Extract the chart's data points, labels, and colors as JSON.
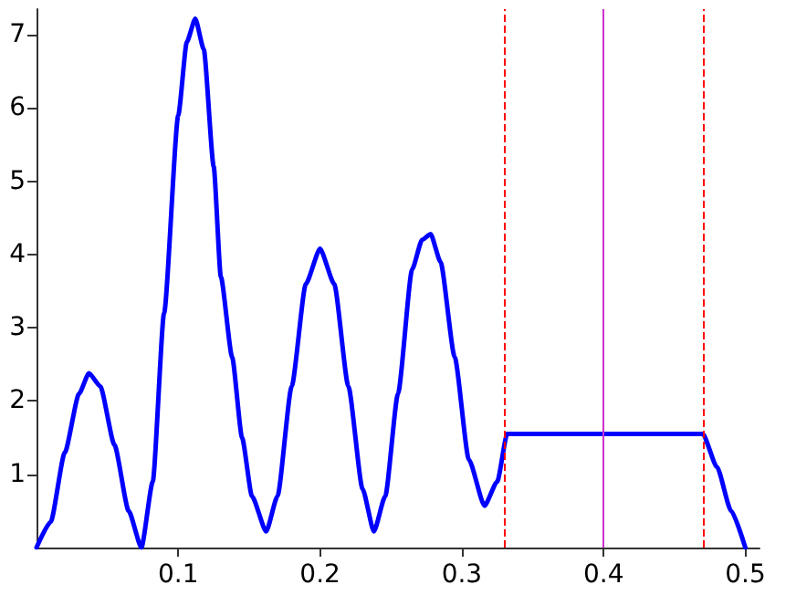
{
  "chart_data": {
    "type": "line",
    "xlim": [
      0,
      0.51
    ],
    "ylim": [
      0,
      7.35
    ],
    "xticks": [
      0.1,
      0.2,
      0.3,
      0.4,
      0.5
    ],
    "yticks": [
      1,
      2,
      3,
      4,
      5,
      6,
      7
    ],
    "grid": false,
    "marker": "none",
    "line_style": "solid",
    "series": [
      {
        "color": "#0000ff",
        "x": [
          0,
          0.01,
          0.02,
          0.03,
          0.037,
          0.045,
          0.055,
          0.065,
          0.074,
          0.082,
          0.09,
          0.1,
          0.106,
          0.112,
          0.118,
          0.125,
          0.13,
          0.138,
          0.145,
          0.152,
          0.162,
          0.17,
          0.18,
          0.19,
          0.2,
          0.21,
          0.22,
          0.23,
          0.238,
          0.246,
          0.255,
          0.265,
          0.272,
          0.278,
          0.285,
          0.295,
          0.305,
          0.316,
          0.325,
          0.332,
          0.4,
          0.47,
          0.48,
          0.49,
          0.5
        ],
        "values": [
          0,
          0.35,
          1.3,
          2.1,
          2.38,
          2.2,
          1.4,
          0.5,
          0,
          0.9,
          3.2,
          5.9,
          6.9,
          7.22,
          6.8,
          5.2,
          3.7,
          2.6,
          1.5,
          0.7,
          0.22,
          0.7,
          2.2,
          3.6,
          4.08,
          3.6,
          2.2,
          0.8,
          0.22,
          0.7,
          2.1,
          3.8,
          4.2,
          4.28,
          3.9,
          2.6,
          1.2,
          0.57,
          0.9,
          1.55,
          1.55,
          1.55,
          1.1,
          0.5,
          0
        ]
      }
    ],
    "ref_lines": [
      {
        "axis": "x",
        "value": 0.33,
        "color": "#ff0000",
        "line_style": "dashed"
      },
      {
        "axis": "x",
        "value": 0.4,
        "color": "#cc33cc",
        "line_style": "solid"
      },
      {
        "axis": "x",
        "value": 0.47,
        "color": "#ff0000",
        "line_style": "dashed"
      }
    ]
  }
}
